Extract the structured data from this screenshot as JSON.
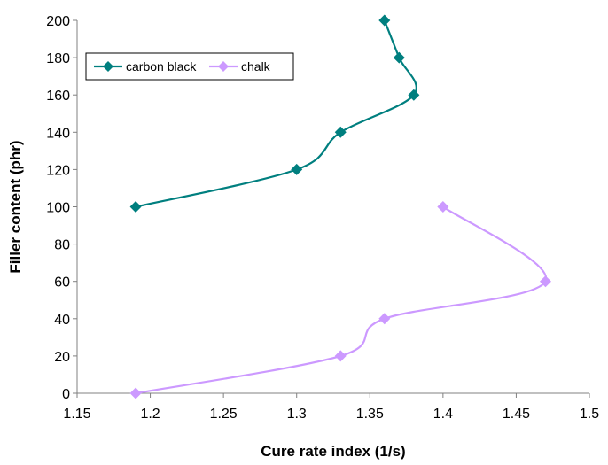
{
  "chart_data": {
    "type": "line",
    "title": "",
    "xlabel": "Cure rate index (1/s)",
    "ylabel": "Filler content (phr)",
    "xlim": [
      1.15,
      1.5
    ],
    "ylim": [
      0,
      200
    ],
    "x_ticks": [
      "1.15",
      "1.2",
      "1.25",
      "1.3",
      "1.35",
      "1.4",
      "1.45",
      "1.5"
    ],
    "y_ticks": [
      "0",
      "20",
      "40",
      "60",
      "80",
      "100",
      "120",
      "140",
      "160",
      "180",
      "200"
    ],
    "grid": false,
    "legend_position": "top-left",
    "series": [
      {
        "name": "carbon black",
        "color": "#007f7f",
        "marker": "diamond",
        "points": [
          {
            "x": 1.19,
            "y": 100
          },
          {
            "x": 1.3,
            "y": 120
          },
          {
            "x": 1.33,
            "y": 140
          },
          {
            "x": 1.38,
            "y": 160
          },
          {
            "x": 1.37,
            "y": 180
          },
          {
            "x": 1.36,
            "y": 200
          }
        ]
      },
      {
        "name": "chalk",
        "color": "#cc99ff",
        "marker": "diamond",
        "points": [
          {
            "x": 1.19,
            "y": 0
          },
          {
            "x": 1.33,
            "y": 20
          },
          {
            "x": 1.36,
            "y": 40
          },
          {
            "x": 1.47,
            "y": 60
          },
          {
            "x": 1.4,
            "y": 100
          }
        ]
      }
    ]
  }
}
